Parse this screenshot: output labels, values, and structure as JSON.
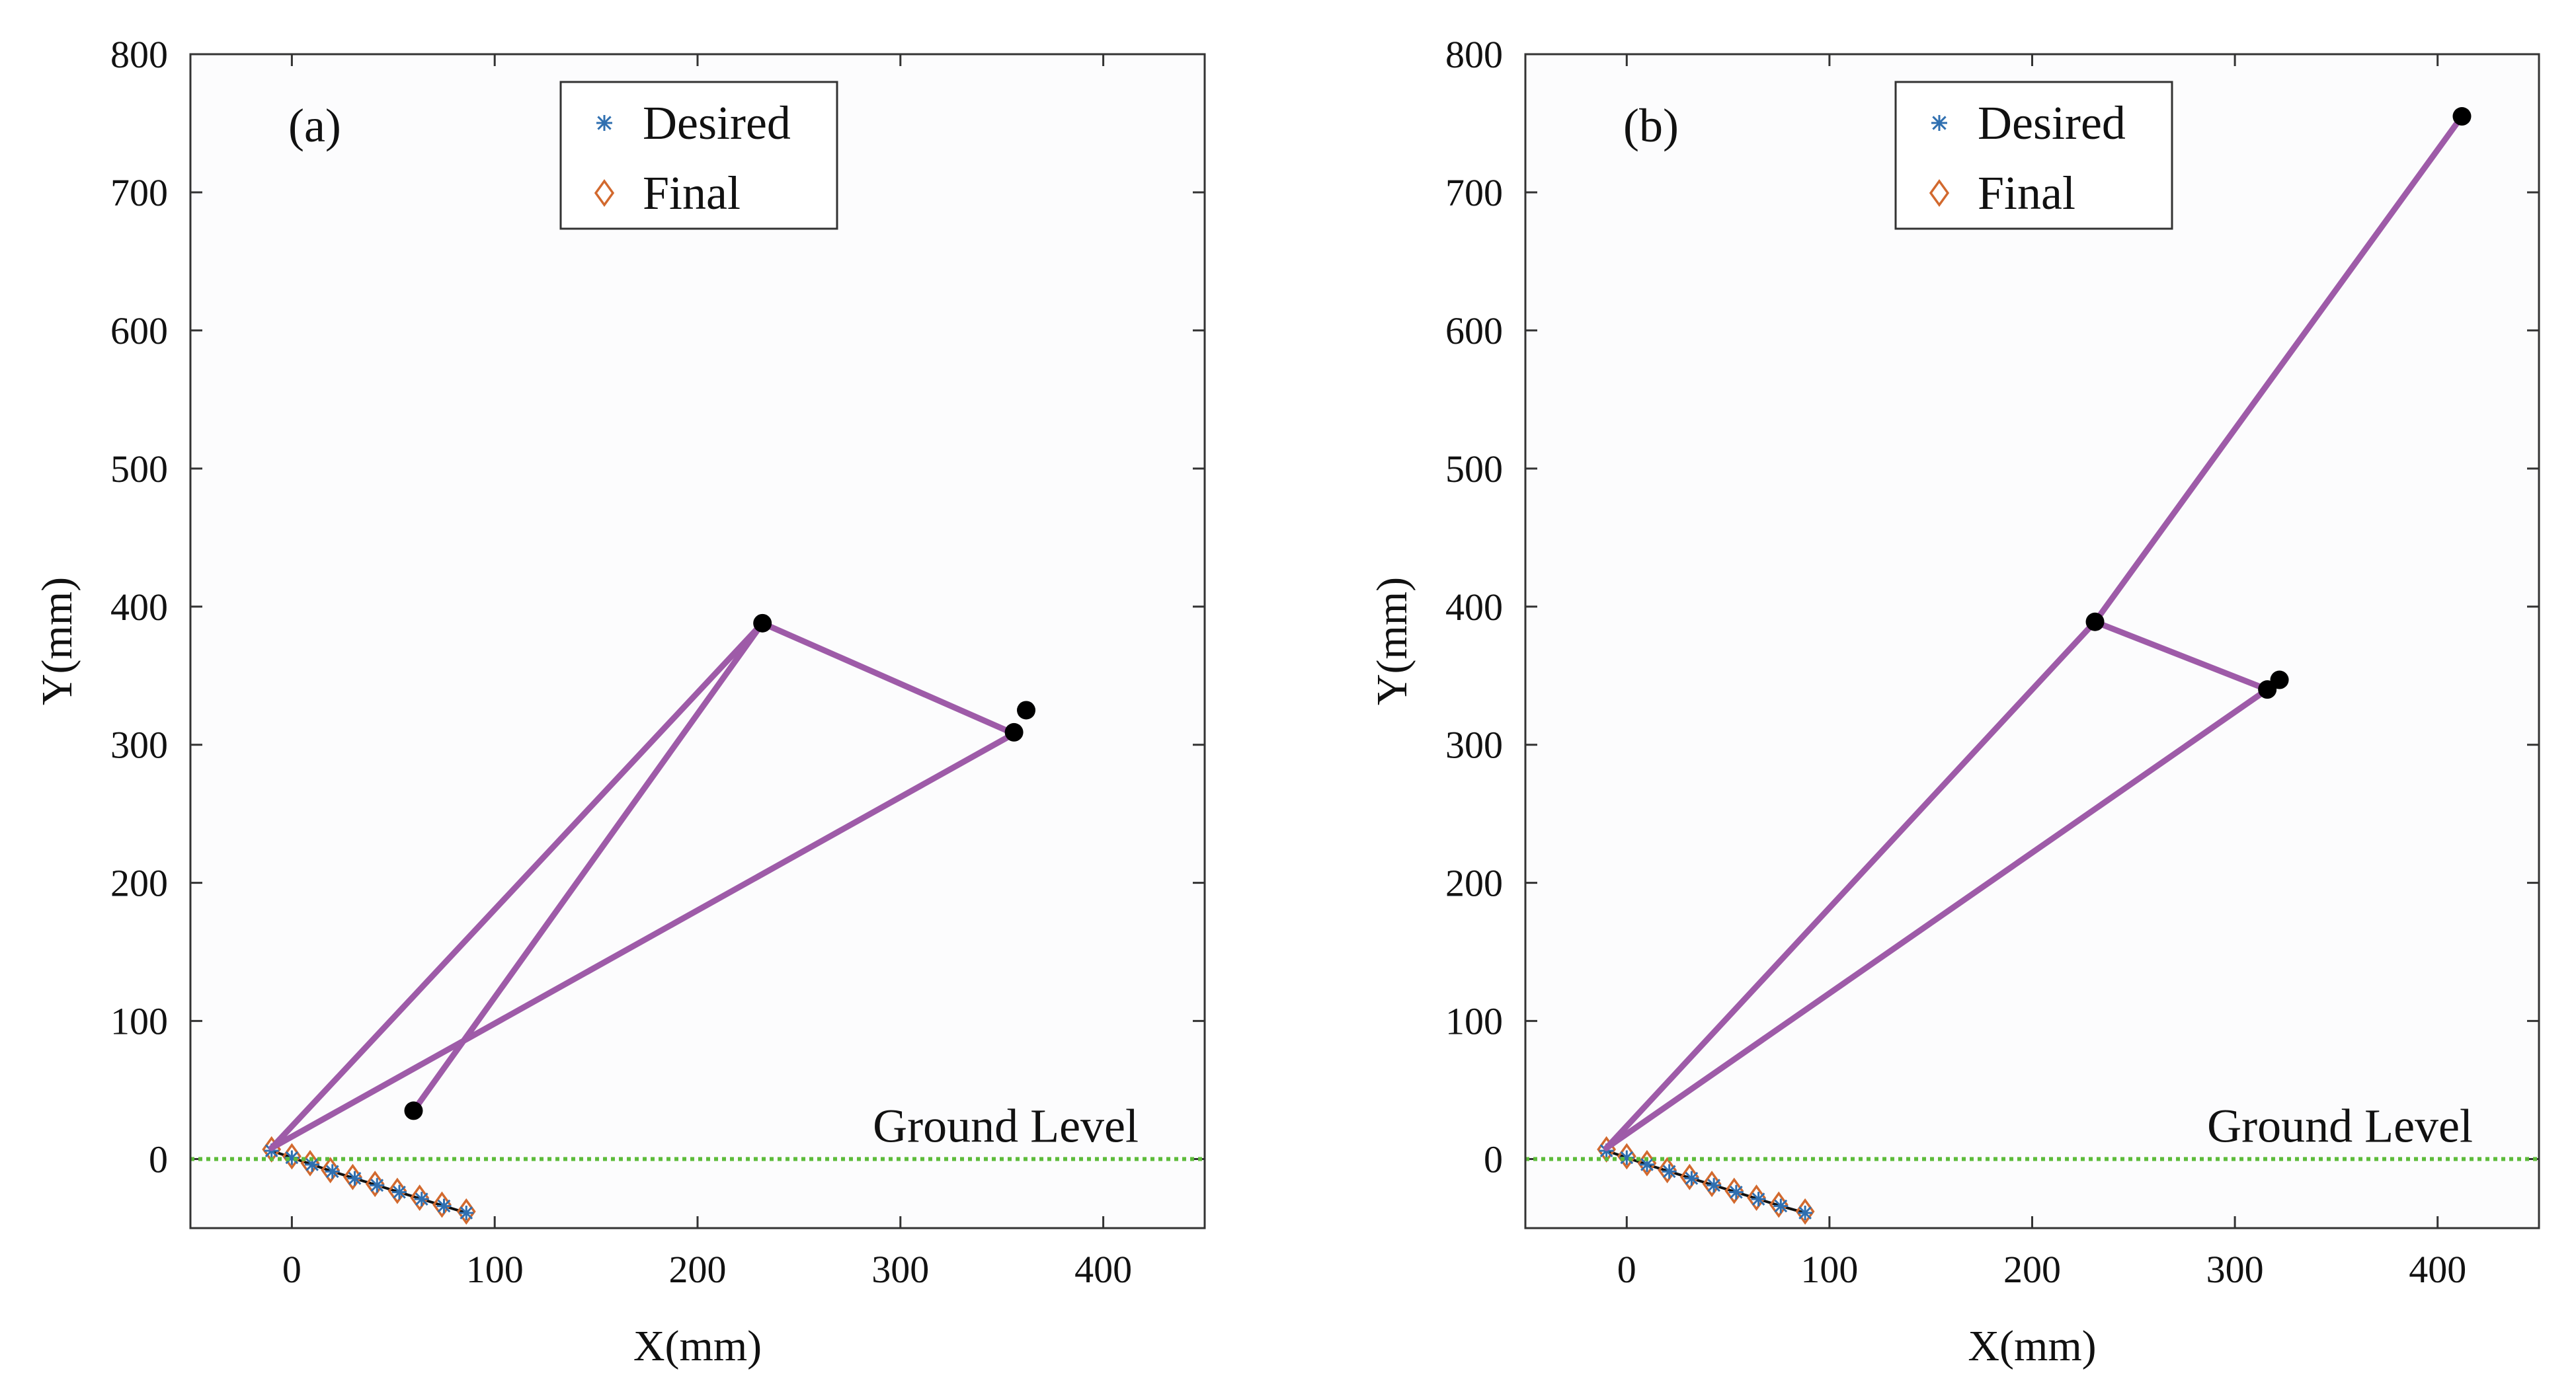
{
  "colors": {
    "link": "#9E5BA8",
    "joint": "#000000",
    "ground": "#5DBB3A",
    "desired": "#2F6FB0",
    "final": "#D2692E",
    "trajectory": "#111111"
  },
  "chart_data": [
    {
      "type": "line",
      "panel_label": "(a)",
      "xlabel": "X(mm)",
      "ylabel": "Y(mm)",
      "xlim": [
        -50,
        450
      ],
      "ylim": [
        -50,
        800
      ],
      "xticks": [
        0,
        100,
        200,
        300,
        400
      ],
      "yticks": [
        0,
        100,
        200,
        300,
        400,
        500,
        600,
        700,
        800
      ],
      "legend": {
        "placement": "top-center",
        "entries": [
          {
            "label": "Desired",
            "marker": "*"
          },
          {
            "label": "Final",
            "marker": "diamond"
          }
        ]
      },
      "ground_level": {
        "y": 0,
        "label": "Ground Level"
      },
      "linkage": {
        "segments": [
          [
            [
              -10,
              8
            ],
            [
              232,
              388
            ]
          ],
          [
            [
              232,
              388
            ],
            [
              60,
              35
            ]
          ],
          [
            [
              232,
              388
            ],
            [
              356,
              308
            ]
          ],
          [
            [
              356,
              308
            ],
            [
              -10,
              8
            ]
          ]
        ],
        "joints": [
          [
            232,
            388
          ],
          [
            60,
            35
          ],
          [
            356,
            309
          ],
          [
            362,
            325
          ]
        ]
      },
      "trajectory": {
        "desired": {
          "x": [
            -10,
            0,
            10,
            20,
            31,
            42,
            53,
            64,
            75,
            86
          ],
          "y": [
            6,
            1,
            -4,
            -9,
            -14,
            -19,
            -24,
            -29,
            -34,
            -39
          ]
        },
        "final": {
          "x": [
            -10,
            0,
            9,
            19,
            30,
            41,
            52,
            63,
            74,
            86
          ],
          "y": [
            7,
            2,
            -3,
            -8,
            -13,
            -18,
            -23,
            -28,
            -33,
            -38
          ]
        }
      }
    },
    {
      "type": "line",
      "panel_label": "(b)",
      "xlabel": "X(mm)",
      "ylabel": "Y(mm)",
      "xlim": [
        -50,
        450
      ],
      "ylim": [
        -50,
        800
      ],
      "xticks": [
        0,
        100,
        200,
        300,
        400
      ],
      "yticks": [
        0,
        100,
        200,
        300,
        400,
        500,
        600,
        700,
        800
      ],
      "legend": {
        "placement": "top-center",
        "entries": [
          {
            "label": "Desired",
            "marker": "*"
          },
          {
            "label": "Final",
            "marker": "diamond"
          }
        ]
      },
      "ground_level": {
        "y": 0,
        "label": "Ground Level"
      },
      "linkage": {
        "segments": [
          [
            [
              -10,
              8
            ],
            [
              231,
              389
            ]
          ],
          [
            [
              231,
              389
            ],
            [
              412,
              755
            ]
          ],
          [
            [
              231,
              389
            ],
            [
              316,
              340
            ]
          ],
          [
            [
              316,
              340
            ],
            [
              -10,
              8
            ]
          ]
        ],
        "joints": [
          [
            231,
            389
          ],
          [
            412,
            755
          ],
          [
            316,
            340
          ],
          [
            322,
            347
          ]
        ]
      },
      "trajectory": {
        "desired": {
          "x": [
            -10,
            0,
            10,
            21,
            32,
            43,
            54,
            65,
            76,
            88
          ],
          "y": [
            6,
            1,
            -4,
            -9,
            -14,
            -19,
            -24,
            -29,
            -34,
            -39
          ]
        },
        "final": {
          "x": [
            -10,
            0,
            10,
            20,
            31,
            42,
            53,
            64,
            75,
            88
          ],
          "y": [
            7,
            2,
            -3,
            -8,
            -13,
            -18,
            -23,
            -28,
            -33,
            -38
          ]
        }
      }
    }
  ]
}
